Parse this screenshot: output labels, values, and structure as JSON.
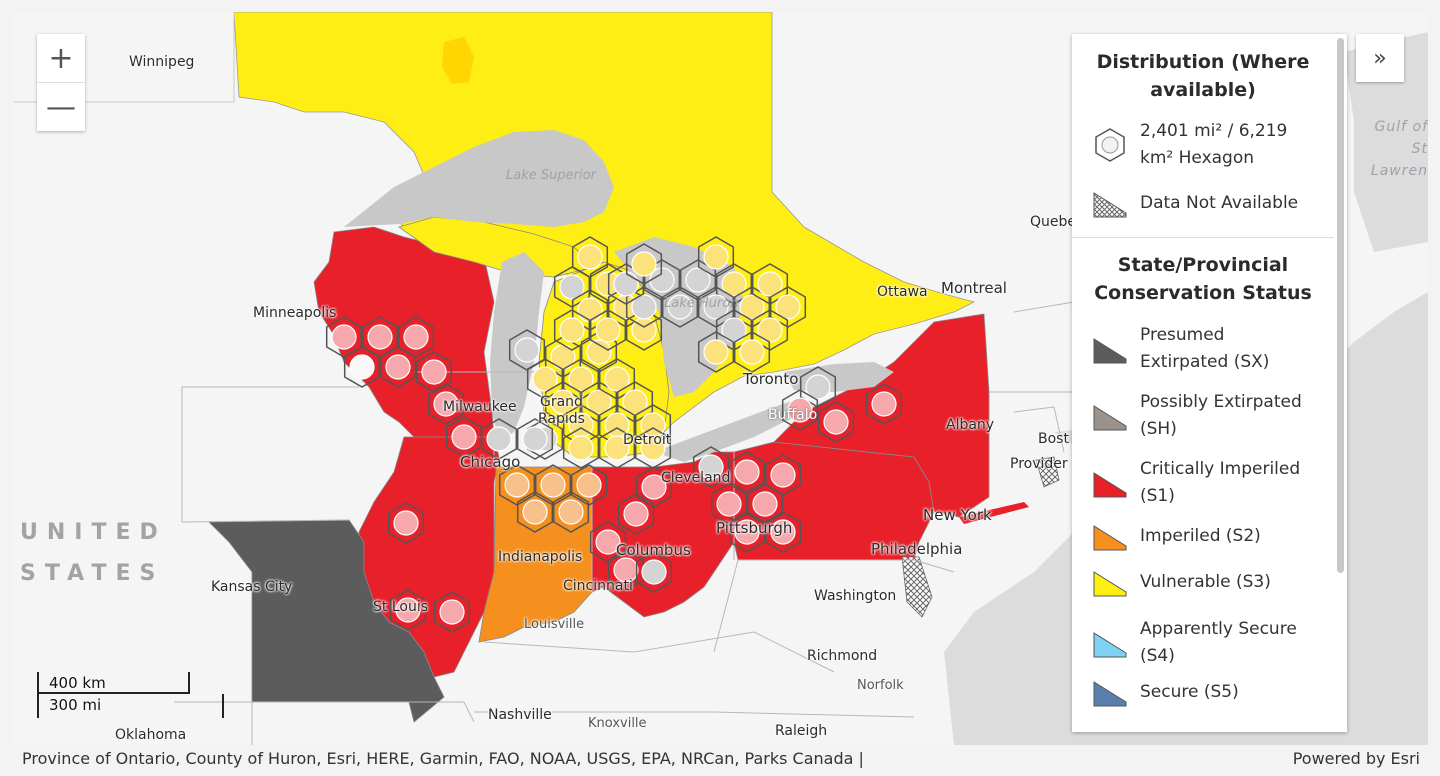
{
  "map": {
    "colors": {
      "water": "#e4e4e4",
      "land": "#f5f5f5",
      "lakes": "#c8c8c8",
      "sx": "#5c5c5c",
      "s1": "#e8202a",
      "s2": "#f5901f",
      "s3": "#ffee14",
      "hex_fill": "#f6a8ad",
      "hex_fill_s3": "#fbe27a",
      "hex_nodata": "#d4d4d4"
    },
    "cities": [
      {
        "id": "winnipeg",
        "name": "Winnipeg"
      },
      {
        "id": "quebec",
        "name": "Quebe"
      },
      {
        "id": "montreal",
        "name": "Montreal"
      },
      {
        "id": "ottawa",
        "name": "Ottawa"
      },
      {
        "id": "toronto",
        "name": "Toronto"
      },
      {
        "id": "buffalo",
        "name": "Buffalo"
      },
      {
        "id": "albany",
        "name": "Albany"
      },
      {
        "id": "boston",
        "name": "Bost"
      },
      {
        "id": "providence",
        "name": "Provider"
      },
      {
        "id": "newyork",
        "name": "New York"
      },
      {
        "id": "philadelphia",
        "name": "Philadelphia"
      },
      {
        "id": "washington",
        "name": "Washington"
      },
      {
        "id": "richmond",
        "name": "Richmond"
      },
      {
        "id": "norfolk",
        "name": "Norfolk"
      },
      {
        "id": "raleigh",
        "name": "Raleigh"
      },
      {
        "id": "knoxville",
        "name": "Knoxville"
      },
      {
        "id": "nashville",
        "name": "Nashville"
      },
      {
        "id": "oklahoma",
        "name": "Oklahoma"
      },
      {
        "id": "kansascity",
        "name": "Kansas City"
      },
      {
        "id": "stlouis",
        "name": "St Louis"
      },
      {
        "id": "louisville",
        "name": "Louisville"
      },
      {
        "id": "cincinnati",
        "name": "Cincinnati"
      },
      {
        "id": "indianapolis",
        "name": "Indianapolis"
      },
      {
        "id": "columbus",
        "name": "Columbus"
      },
      {
        "id": "pittsburgh",
        "name": "Pittsburgh"
      },
      {
        "id": "cleveland",
        "name": "Cleveland"
      },
      {
        "id": "detroit",
        "name": "Detroit"
      },
      {
        "id": "chicago",
        "name": "Chicago"
      },
      {
        "id": "milwaukee",
        "name": "Milwaukee"
      },
      {
        "id": "minneapolis",
        "name": "Minneapolis"
      }
    ],
    "grand_rapids": "Grand\nRapids",
    "water_labels": {
      "lake_superior": "Lake\nSuperior",
      "lake_huron": "Lake\nHuron",
      "gulf": "Gulf\nof St\nLawren"
    },
    "country_label": "UNITED\nSTATES",
    "zoom_in": "+",
    "zoom_out": "—",
    "scale": {
      "km": "400 km",
      "mi": "300 mi"
    }
  },
  "legend": {
    "title1": "Distribution (Where available)",
    "hex_label": "2,401 mi² / 6,219 km² Hexagon",
    "nodata_label": "Data Not Available",
    "title2": "State/Provincial Conservation Status",
    "items": [
      {
        "label": "Presumed Extirpated (SX)",
        "color": "#5c5c5c"
      },
      {
        "label": "Possibly Extirpated (SH)",
        "color": "#9b928b"
      },
      {
        "label": "Critically Imperiled (S1)",
        "color": "#e8202a"
      },
      {
        "label": "Imperiled (S2)",
        "color": "#f5901f"
      },
      {
        "label": "Vulnerable (S3)",
        "color": "#ffee14"
      },
      {
        "label": "Apparently Secure (S4)",
        "color": "#7fd3f2"
      },
      {
        "label": "Secure (S5)",
        "color": "#5b7fad"
      }
    ],
    "expand_icon": "»"
  },
  "attribution": {
    "left": "Province of Ontario, County of Huron, Esri, HERE, Garmin, FAO, NOAA, USGS, EPA, NRCan, Parks Canada |",
    "right": "Powered by Esri"
  }
}
